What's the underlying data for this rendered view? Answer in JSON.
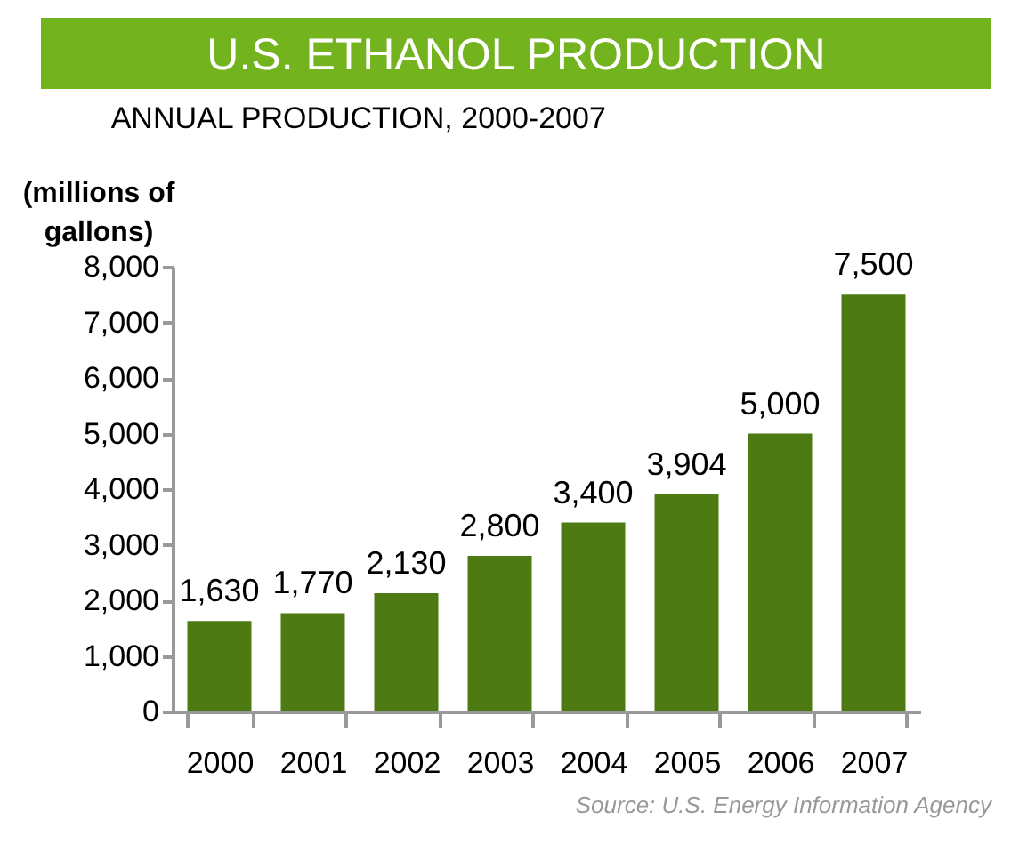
{
  "chart_data": {
    "type": "bar",
    "title": "U.S. ETHANOL PRODUCTION",
    "subtitle": "ANNUAL PRODUCTION, 2000-2007",
    "ylabel": "(millions of gallons)",
    "categories": [
      "2000",
      "2001",
      "2002",
      "2003",
      "2004",
      "2005",
      "2006",
      "2007"
    ],
    "values": [
      1630,
      1770,
      2130,
      2800,
      3400,
      3904,
      5000,
      7500
    ],
    "value_labels": [
      "1,630",
      "1,770",
      "2,130",
      "2,800",
      "3,400",
      "3,904",
      "5,000",
      "7,500"
    ],
    "color": "#4d7a12",
    "ylim": [
      0,
      8000
    ],
    "yticks": [
      0,
      {
        "value": 1000,
        "label": "1,000"
      },
      {
        "value": 2000,
        "label": "2,000"
      },
      {
        "value": 3000,
        "label": "3,000"
      },
      {
        "value": 4000,
        "label": "4,000"
      },
      {
        "value": 5000,
        "label": "5,000"
      },
      {
        "value": 6000,
        "label": "6,000"
      },
      {
        "value": 7000,
        "label": "7,000"
      },
      {
        "value": 8000,
        "label": "8,000"
      }
    ],
    "grid": false,
    "annotations": [
      "Source: U.S. Energy Information Agency"
    ]
  }
}
